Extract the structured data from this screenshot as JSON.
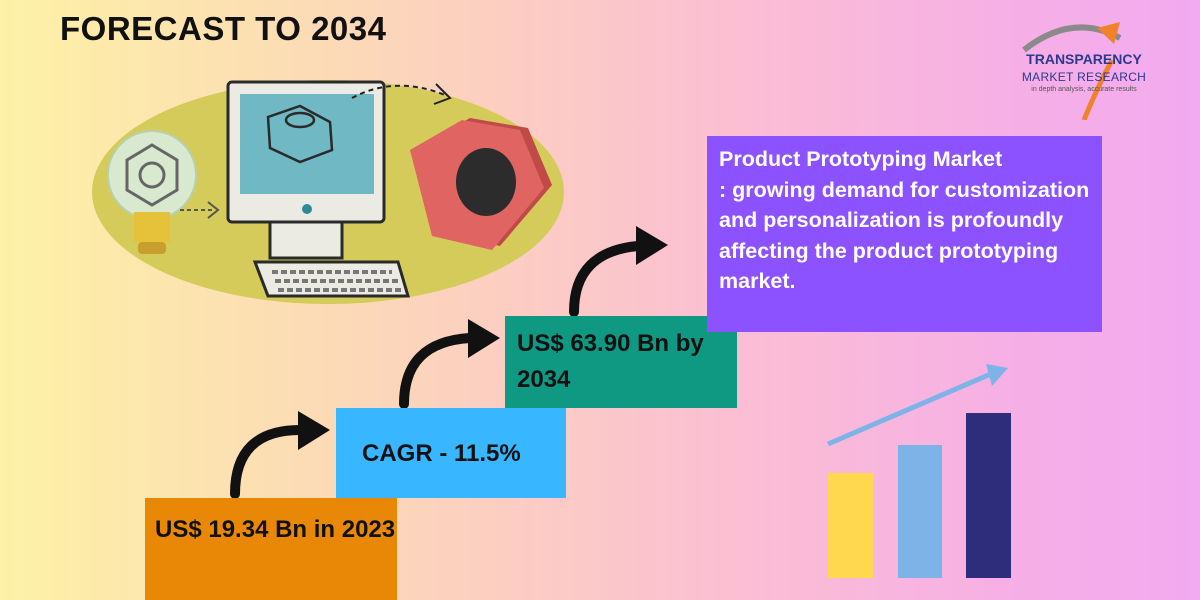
{
  "header": {
    "title": "FORECAST TO 2034"
  },
  "logo": {
    "name": "TRANSPARENCY",
    "subtitle": "MARKET RESEARCH",
    "tagline": "in depth analysis, accurate results"
  },
  "steps": [
    {
      "label": "US$ 19.34 Bn in 2023",
      "color": "#e98807"
    },
    {
      "label": "CAGR - 11.5%",
      "color": "#38b6ff"
    },
    {
      "label": "US$ 63.90 Bn by 2034",
      "color": "#0f9882"
    }
  ],
  "description": {
    "title": "Product Prototyping Market",
    "body": ": growing demand for customization and personalization is profoundly affecting the product prototyping market.",
    "color": "#8c52ff"
  },
  "growth_bars": {
    "colors": [
      "#ffd84f",
      "#7eb3e8",
      "#2e2d7c"
    ]
  }
}
